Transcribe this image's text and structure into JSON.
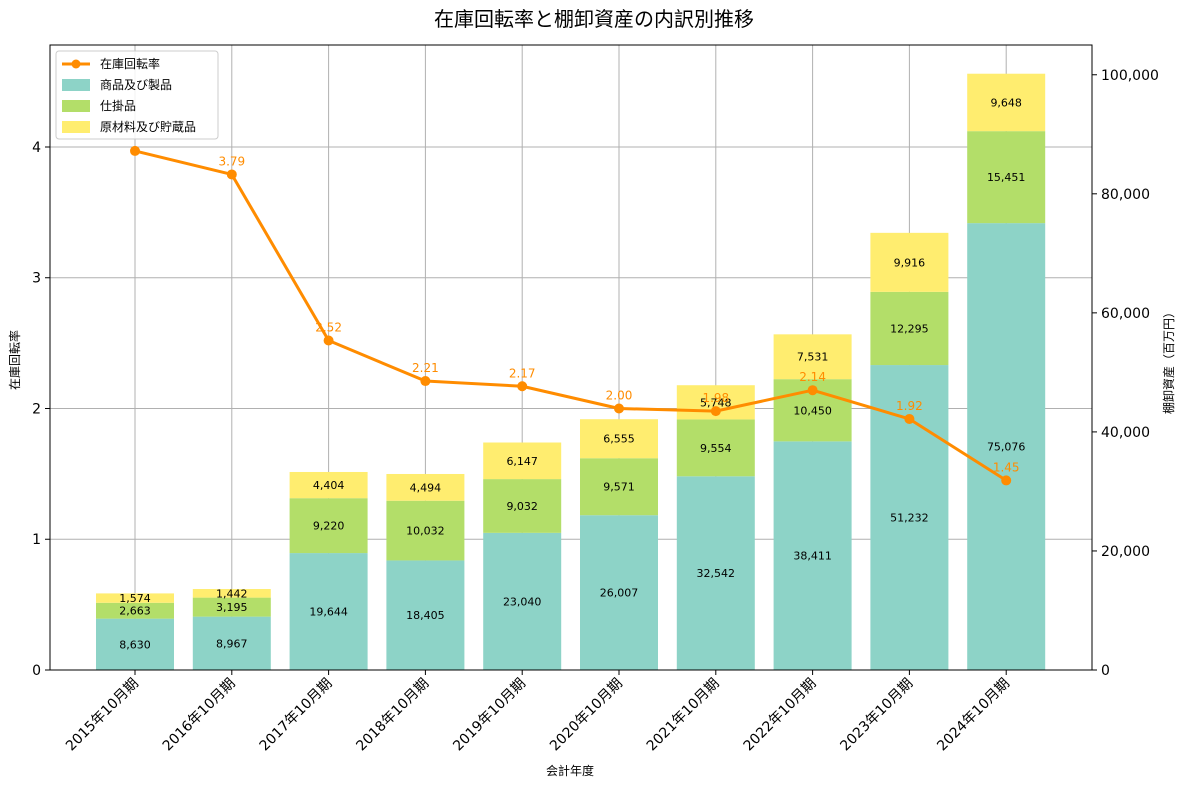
{
  "colors": {
    "products": "#8dd3c7",
    "wip": "#b3de69",
    "materials": "#ffed6f",
    "rate": "#ff8c00",
    "grid": "#b0b0b0",
    "axis": "#000000"
  },
  "chart_data": {
    "type": "bar",
    "title": "在庫回転率と棚卸資産の内訳別推移",
    "xlabel": "会計年度",
    "ylabel_left": "在庫回転率",
    "ylabel_right": "棚卸資産（百万円）",
    "ylim_left": [
      0,
      4.78
    ],
    "ylim_right": [
      0,
      105000
    ],
    "yticks_left": [
      0,
      1,
      2,
      3,
      4
    ],
    "yticks_left_labels": [
      "0",
      "1",
      "2",
      "3",
      "4"
    ],
    "yticks_right": [
      0,
      20000,
      40000,
      60000,
      80000,
      100000
    ],
    "yticks_right_labels": [
      "0",
      "20,000",
      "40,000",
      "60,000",
      "80,000",
      "100,000"
    ],
    "grid": true,
    "legend_position": "upper-left",
    "categories": [
      "2015年10月期",
      "2016年10月期",
      "2017年10月期",
      "2018年10月期",
      "2019年10月期",
      "2020年10月期",
      "2021年10月期",
      "2022年10月期",
      "2023年10月期",
      "2024年10月期"
    ],
    "series": [
      {
        "name": "商品及び製品",
        "key": "products",
        "values": [
          8630,
          8967,
          19644,
          18405,
          23040,
          26007,
          32542,
          38411,
          51232,
          75076
        ],
        "labels": [
          "8,630",
          "8,967",
          "19,644",
          "18,405",
          "23,040",
          "26,007",
          "32,542",
          "38,411",
          "51,232",
          "75,076"
        ]
      },
      {
        "name": "仕掛品",
        "key": "wip",
        "values": [
          2663,
          3195,
          9220,
          10032,
          9032,
          9571,
          9554,
          10450,
          12295,
          15451
        ],
        "labels": [
          "2,663",
          "3,195",
          "9,220",
          "10,032",
          "9,032",
          "9,571",
          "9,554",
          "10,450",
          "12,295",
          "15,451"
        ]
      },
      {
        "name": "原材料及び貯蔵品",
        "key": "materials",
        "values": [
          1574,
          1442,
          4404,
          4494,
          6147,
          6555,
          5748,
          7531,
          9916,
          9648
        ],
        "labels": [
          "1,574",
          "1,442",
          "4,404",
          "4,494",
          "6,147",
          "6,555",
          "5,748",
          "7,531",
          "9,916",
          "9,648"
        ]
      }
    ],
    "line": {
      "name": "在庫回転率",
      "values": [
        3.97,
        3.79,
        2.52,
        2.21,
        2.17,
        2.0,
        1.98,
        2.14,
        1.92,
        1.45
      ],
      "labels": [
        "",
        "3.79",
        "2.52",
        "2.21",
        "2.17",
        "2.00",
        "1.98",
        "2.14",
        "1.92",
        "1.45"
      ]
    }
  }
}
